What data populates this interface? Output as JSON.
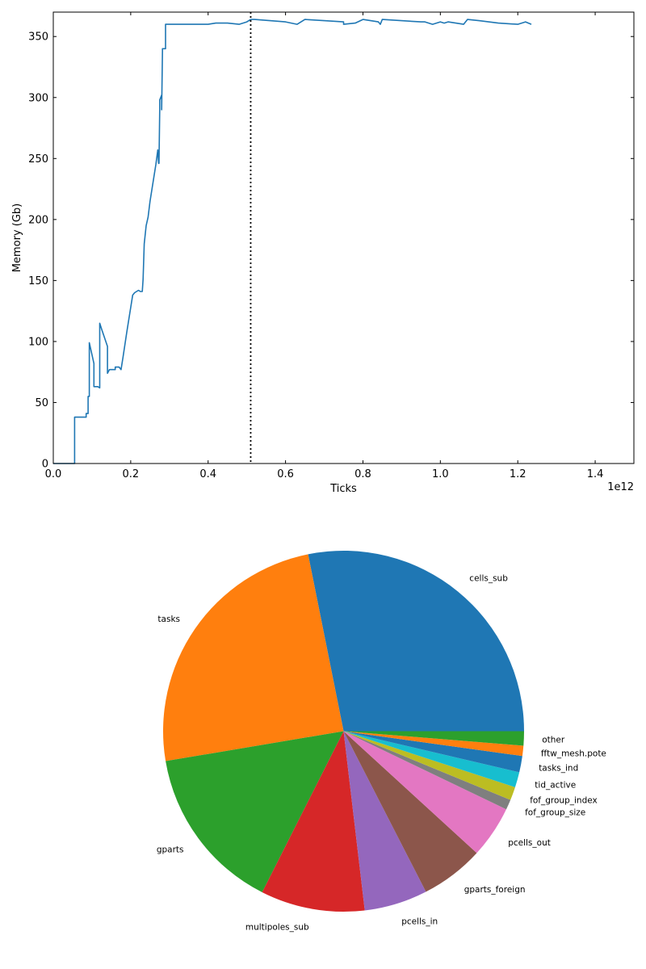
{
  "chart_data": [
    {
      "type": "line",
      "xlabel": "Ticks",
      "ylabel": "Memory (Gb)",
      "x_offset_label": "1e12",
      "xlim": [
        0,
        1.5
      ],
      "ylim": [
        0,
        370
      ],
      "x_ticks": [
        0.0,
        0.2,
        0.4,
        0.6,
        0.8,
        1.0,
        1.2,
        1.4
      ],
      "x_tick_labels": [
        "0.0",
        "0.2",
        "0.4",
        "0.6",
        "0.8",
        "1.0",
        "1.2",
        "1.4"
      ],
      "y_ticks": [
        0,
        50,
        100,
        150,
        200,
        250,
        300,
        350
      ],
      "y_tick_labels": [
        "0",
        "50",
        "100",
        "150",
        "200",
        "250",
        "300",
        "350"
      ],
      "grid": false,
      "color": "#1f77b4",
      "vline": {
        "x": 0.51,
        "style": "dotted",
        "color": "#000000"
      },
      "series": [
        {
          "x": [
            0.0,
            0.055,
            0.055,
            0.085,
            0.085,
            0.09,
            0.09,
            0.093,
            0.093,
            0.105,
            0.105,
            0.11,
            0.115,
            0.12,
            0.12,
            0.125,
            0.14,
            0.14,
            0.145,
            0.145,
            0.16,
            0.16,
            0.17,
            0.175,
            0.18,
            0.19,
            0.2,
            0.205,
            0.21,
            0.215,
            0.22,
            0.225,
            0.23,
            0.232,
            0.235,
            0.24,
            0.245,
            0.25,
            0.255,
            0.26,
            0.265,
            0.27,
            0.272,
            0.273,
            0.275,
            0.275,
            0.28,
            0.28,
            0.282,
            0.282,
            0.29,
            0.29,
            0.3,
            0.35,
            0.4,
            0.42,
            0.45,
            0.48,
            0.5,
            0.51,
            0.52,
            0.6,
            0.63,
            0.65,
            0.7,
            0.75,
            0.75,
            0.78,
            0.8,
            0.84,
            0.845,
            0.85,
            0.95,
            0.96,
            0.98,
            1.0,
            1.01,
            1.02,
            1.04,
            1.06,
            1.07,
            1.1,
            1.15,
            1.2,
            1.22,
            1.235
          ],
          "y": [
            0,
            0,
            38,
            38,
            41,
            41,
            55,
            55,
            99,
            82,
            63,
            63,
            63,
            62,
            115,
            110,
            96,
            74,
            77,
            77,
            77,
            79,
            79,
            77,
            87,
            108,
            128,
            138,
            140,
            141,
            142,
            141,
            141,
            151,
            180,
            195,
            202,
            215,
            225,
            235,
            245,
            257,
            246,
            246,
            290,
            298,
            302,
            290,
            338,
            340,
            340,
            360,
            360,
            360,
            360,
            361,
            361,
            360,
            362,
            364,
            364,
            362,
            360,
            364,
            363,
            362,
            360,
            361,
            364,
            362,
            360,
            364,
            362,
            362,
            360,
            362,
            361,
            362,
            361,
            360,
            364,
            363,
            361,
            360,
            362,
            360
          ]
        }
      ]
    },
    {
      "type": "pie",
      "labels": [
        "cells_sub",
        "tasks",
        "gparts",
        "multipoles_sub",
        "pcells_in",
        "gparts_foreign",
        "pcells_out",
        "fof_group_size",
        "fof_group_index",
        "tid_active",
        "tasks_ind",
        "fftw_mesh.pote",
        "other"
      ],
      "values": [
        30.8,
        26.8,
        16.3,
        10.2,
        6.2,
        6.2,
        5.1,
        1.0,
        1.3,
        1.5,
        1.6,
        1.0,
        1.4
      ],
      "colors": [
        "#1f77b4",
        "#ff7f0e",
        "#2ca02c",
        "#d62728",
        "#9467bd",
        "#8c564b",
        "#e377c2",
        "#7f7f7f",
        "#bcbd22",
        "#17becf",
        "#1f77b4",
        "#ff7f0e",
        "#2ca02c"
      ],
      "startangle_deg": 0,
      "direction": "counterclockwise",
      "legend": "none"
    }
  ]
}
